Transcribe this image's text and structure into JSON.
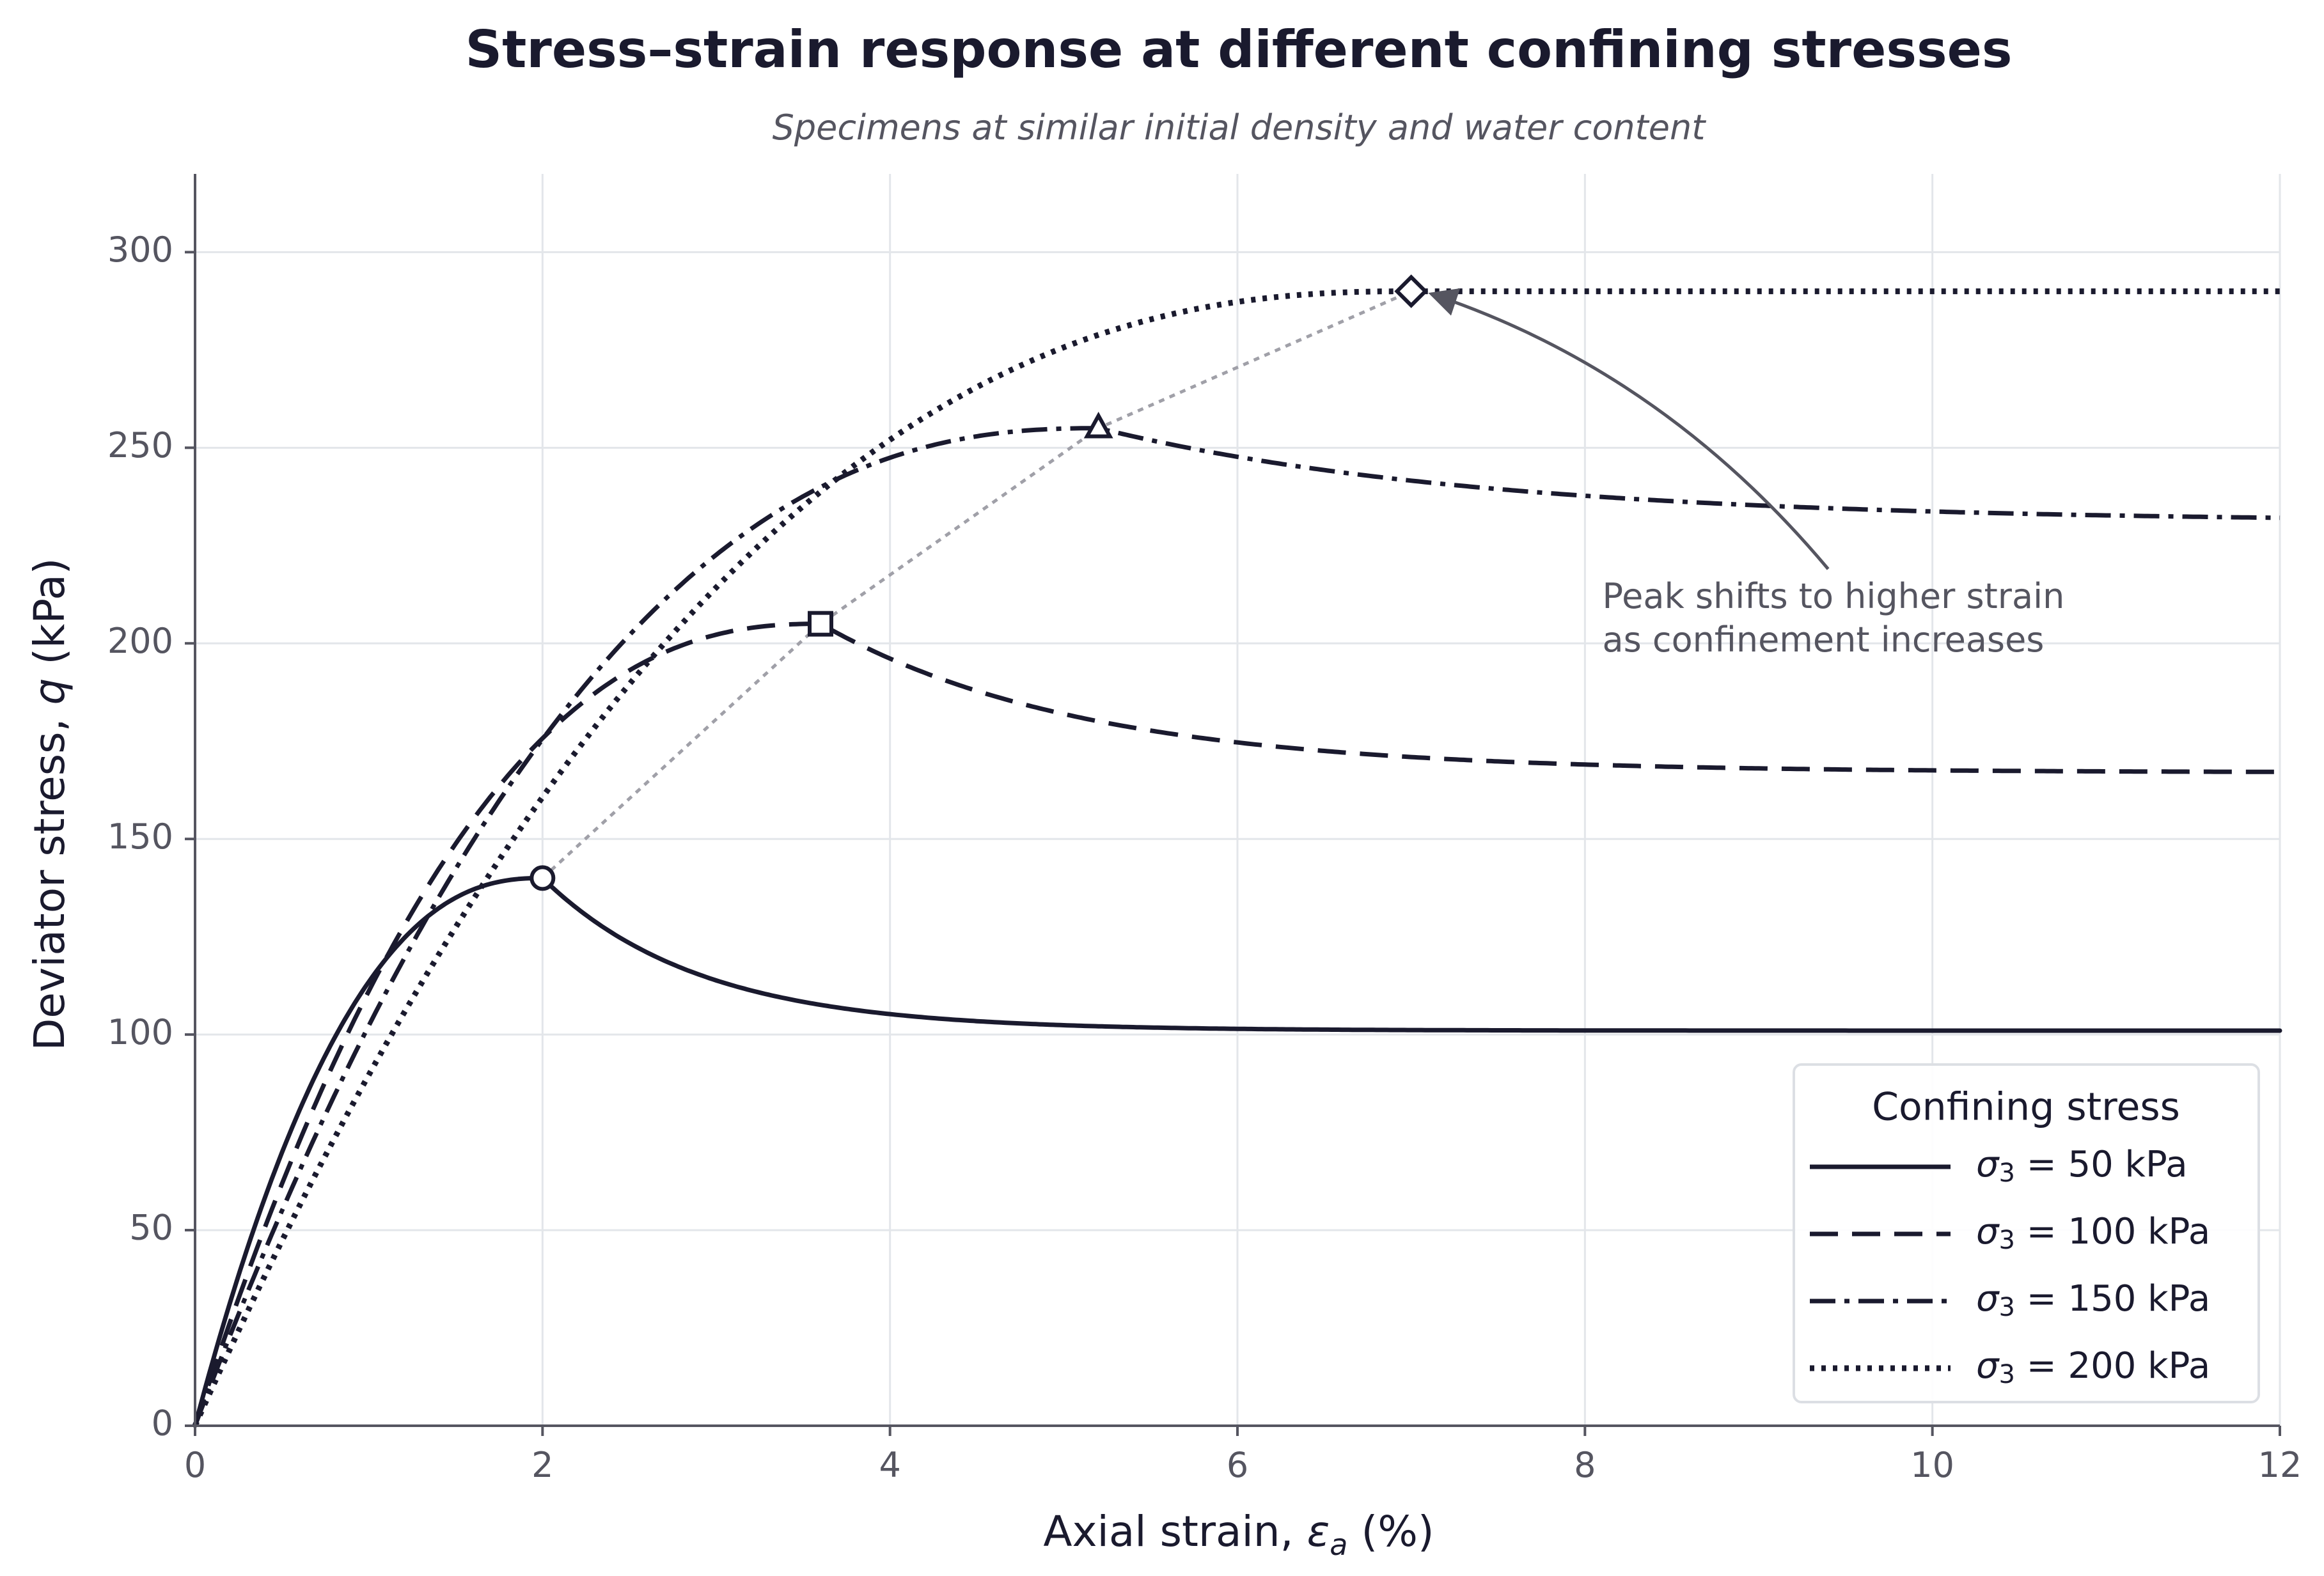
{
  "chart_data": {
    "type": "line",
    "title": "Stress–strain response at different confining stresses",
    "subtitle": "Specimens at similar initial density and water content",
    "xlabel": "Axial strain, εa (%)",
    "xlabel_parts": {
      "main": "Axial strain, ",
      "symbol": "ε",
      "subscript": "a",
      "suffix": " (%)"
    },
    "ylabel": "Deviator stress, q (kPa)",
    "ylabel_parts": {
      "main": "Deviator stress, ",
      "symbol": "q",
      "suffix": " (kPa)"
    },
    "xlim": [
      0,
      12
    ],
    "ylim": [
      0,
      320
    ],
    "x_ticks": [
      0,
      2,
      4,
      6,
      8,
      10,
      12
    ],
    "y_ticks": [
      0,
      50,
      100,
      150,
      200,
      250,
      300
    ],
    "grid": true,
    "legend": {
      "title": "Confining stress",
      "position": "lower-right"
    },
    "series": [
      {
        "name": "σ3 = 50 kPa",
        "label_symbol": "σ",
        "label_sub": "3",
        "label_value": " = 50 kPa",
        "confining_stress": 50,
        "peak_strain": 2.0,
        "peak_stress": 140,
        "residual_stress": 101,
        "decay": 0.9,
        "dash": "solid",
        "marker": "circle"
      },
      {
        "name": "σ3 = 100 kPa",
        "label_symbol": "σ",
        "label_sub": "3",
        "label_value": " = 100 kPa",
        "confining_stress": 100,
        "peak_strain": 3.6,
        "peak_stress": 205,
        "residual_stress": 167,
        "decay": 1.5,
        "dash": "dashed",
        "marker": "square"
      },
      {
        "name": "σ3 = 150 kPa",
        "label_symbol": "σ",
        "label_sub": "3",
        "label_value": " = 150 kPa",
        "confining_stress": 150,
        "peak_strain": 5.2,
        "peak_stress": 255,
        "residual_stress": 231,
        "decay": 2.2,
        "dash": "dashdot",
        "marker": "triangle"
      },
      {
        "name": "σ3 = 200 kPa",
        "label_symbol": "σ",
        "label_sub": "3",
        "label_value": " = 200 kPa",
        "confining_stress": 200,
        "peak_strain": 7.0,
        "peak_stress": 290,
        "residual_stress": 290,
        "decay": 1.0,
        "dash": "dotted",
        "marker": "diamond"
      }
    ],
    "peak_connector": {
      "style": "dotted",
      "color": "#a0a0a8"
    },
    "annotation": {
      "lines": [
        "Peak shifts to higher strain",
        "as confinement increases"
      ],
      "text_x": 8.1,
      "text_y": 209,
      "arrow_from": [
        9.4,
        219
      ],
      "arrow_to": [
        7.07,
        290
      ]
    },
    "colors": {
      "series": "#1a1a2e",
      "grid": "#e3e6ea",
      "axis": "#555560",
      "annotation": "#555560",
      "connector": "#a0a0a8"
    }
  }
}
